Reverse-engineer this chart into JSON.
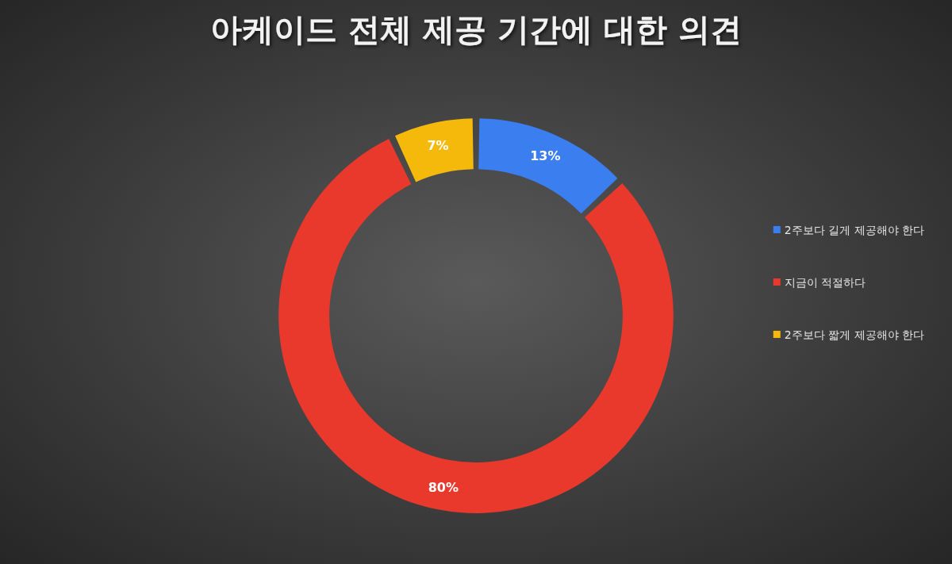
{
  "chart_data": {
    "type": "donut",
    "title": "아케이드 전체 제공 기간에 대한 의견",
    "categories": [
      "2주보다 길게 제공해야 한다",
      "지금이 적절하다",
      "2주보다 짧게 제공해야 한다"
    ],
    "values": [
      13,
      80,
      7
    ],
    "colors": [
      "#3b7ef0",
      "#e8392c",
      "#f4b90a"
    ],
    "value_labels": [
      "13%",
      "80%",
      "7%"
    ],
    "legend": "right"
  }
}
